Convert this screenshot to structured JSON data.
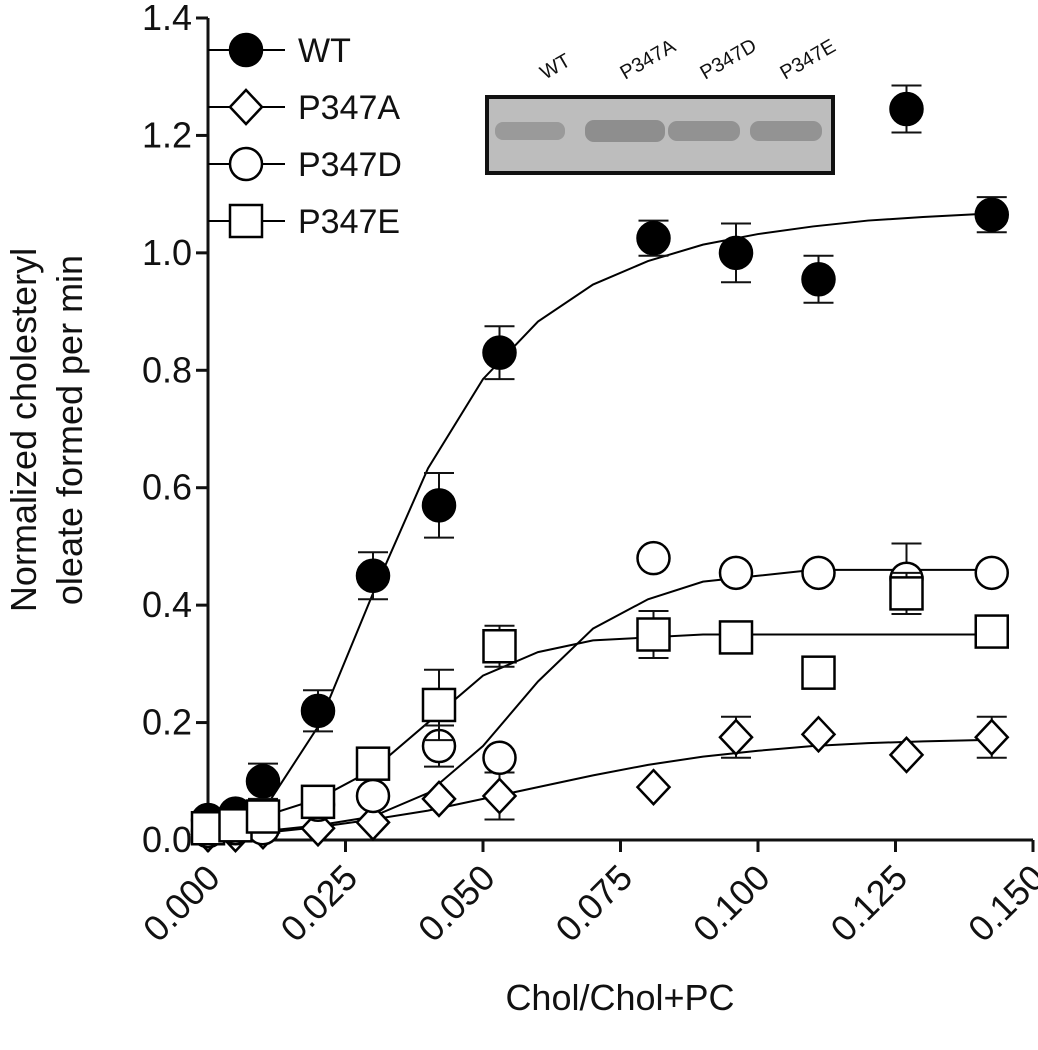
{
  "chart_data": {
    "type": "scatter",
    "xlabel": "Chol/Chol+PC",
    "ylabel": [
      "Normalized cholesteryl",
      "oleate formed per min"
    ],
    "x": [
      0,
      0.005,
      0.01,
      0.02,
      0.03,
      0.042,
      0.053,
      0.081,
      0.096,
      0.111,
      0.127,
      0.1425
    ],
    "fit_x": [
      0,
      0.01,
      0.02,
      0.03,
      0.04,
      0.05,
      0.06,
      0.07,
      0.08,
      0.09,
      0.1,
      0.11,
      0.12,
      0.13,
      0.14
    ],
    "series": [
      {
        "name": "WT",
        "color": "#000000",
        "marker": "circle-filled",
        "values": [
          0.034,
          0.045,
          0.1,
          0.22,
          0.45,
          0.57,
          0.83,
          1.025,
          1.0,
          0.955,
          1.245,
          1.065
        ],
        "errors": [
          null,
          null,
          0.03,
          0.035,
          0.04,
          0.055,
          0.045,
          0.03,
          0.05,
          0.04,
          0.04,
          0.03
        ],
        "fit": [
          0.02,
          0.049,
          0.193,
          0.42,
          0.633,
          0.785,
          0.883,
          0.946,
          0.986,
          1.014,
          1.032,
          1.045,
          1.055,
          1.061,
          1.066
        ]
      },
      {
        "name": "P347A",
        "color": "#000000",
        "marker": "diamond",
        "values": [
          0.01,
          0.01,
          0.015,
          0.02,
          0.03,
          0.07,
          0.075,
          0.09,
          0.175,
          0.18,
          0.145,
          0.175
        ],
        "errors": [
          null,
          null,
          null,
          null,
          null,
          null,
          0.04,
          null,
          0.035,
          null,
          null,
          0.035
        ],
        "fit": [
          0.005,
          0.012,
          0.022,
          0.035,
          0.05,
          0.07,
          0.09,
          0.11,
          0.128,
          0.142,
          0.152,
          0.16,
          0.165,
          0.168,
          0.17
        ]
      },
      {
        "name": "P347D",
        "color": "#000000",
        "marker": "circle-open",
        "values": [
          0.015,
          0.02,
          0.02,
          0.06,
          0.075,
          0.16,
          0.14,
          0.48,
          0.455,
          0.455,
          0.445,
          0.455
        ],
        "errors": [
          null,
          null,
          null,
          null,
          null,
          0.035,
          null,
          null,
          null,
          null,
          0.06,
          null
        ],
        "fit": [
          0.01,
          0.015,
          0.025,
          0.04,
          0.08,
          0.16,
          0.27,
          0.36,
          0.41,
          0.44,
          0.45,
          0.46,
          0.46,
          0.46,
          0.46
        ]
      },
      {
        "name": "P347E",
        "color": "#000000",
        "marker": "square",
        "values": [
          0.02,
          0.025,
          0.04,
          0.065,
          0.13,
          0.23,
          0.33,
          0.35,
          0.345,
          0.285,
          0.42,
          0.355
        ],
        "errors": [
          null,
          null,
          null,
          null,
          null,
          0.06,
          0.035,
          0.04,
          null,
          null,
          0.035,
          null
        ],
        "fit": [
          0.02,
          0.04,
          0.07,
          0.12,
          0.2,
          0.28,
          0.32,
          0.34,
          0.345,
          0.35,
          0.35,
          0.35,
          0.35,
          0.35,
          0.35
        ]
      }
    ],
    "xlim": [
      0,
      0.15
    ],
    "ylim": [
      0,
      1.4
    ],
    "xticks": [
      {
        "value": 0,
        "label": "0.000"
      },
      0.025,
      {
        "value": 0.05,
        "label": "0.050"
      },
      0.075,
      {
        "value": 0.1,
        "label": "0.100"
      },
      0.125,
      {
        "value": 0.15,
        "label": "0.150"
      }
    ],
    "yticks": [
      {
        "value": 0,
        "label": "0.0"
      },
      0.2,
      0.4,
      0.6,
      0.8,
      {
        "value": 1,
        "label": "1.0"
      },
      1.2,
      1.4
    ],
    "legend": "upper-left",
    "inset_lanes": [
      "WT",
      "P347A",
      "P347D",
      "P347E"
    ]
  }
}
